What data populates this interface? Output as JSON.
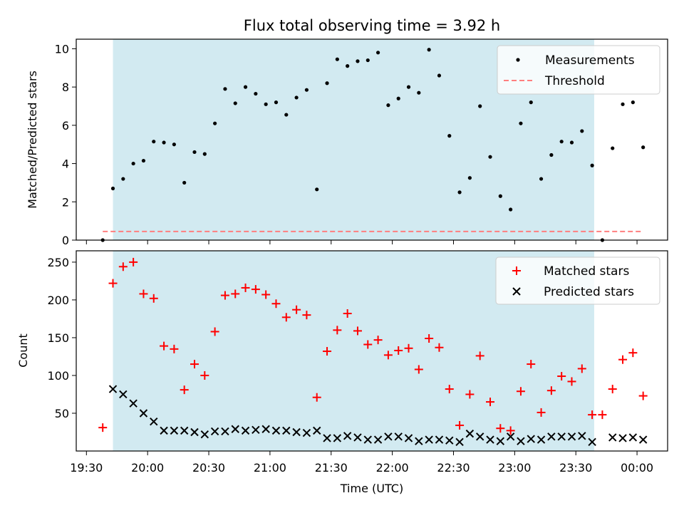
{
  "figure": {
    "title": "Flux total observing time = 3.92 h",
    "xlabel": "Time (UTC)"
  },
  "colors": {
    "shade": "#add8e6",
    "measurement": "#000000",
    "threshold": "#ff7f7f",
    "matched": "#ff0000",
    "predicted": "#000000"
  },
  "chart_data": [
    {
      "type": "scatter",
      "ylabel": "Matched/Predicted stars",
      "xlim": [
        "19:25",
        "00:15"
      ],
      "ylim": [
        0,
        10.5
      ],
      "yticks": [
        0,
        2,
        4,
        6,
        8,
        10
      ],
      "shaded_span": [
        "19:43",
        "23:39"
      ],
      "legend_position": "upper right",
      "series": [
        {
          "name": "Measurements",
          "x": [
            "19:38",
            "19:43",
            "19:48",
            "19:53",
            "19:58",
            "20:03",
            "20:08",
            "20:13",
            "20:18",
            "20:23",
            "20:28",
            "20:33",
            "20:38",
            "20:43",
            "20:48",
            "20:53",
            "20:58",
            "21:03",
            "21:08",
            "21:13",
            "21:18",
            "21:23",
            "21:28",
            "21:33",
            "21:38",
            "21:43",
            "21:48",
            "21:53",
            "21:58",
            "22:03",
            "22:08",
            "22:13",
            "22:18",
            "22:23",
            "22:28",
            "22:33",
            "22:38",
            "22:43",
            "22:48",
            "22:53",
            "22:58",
            "23:03",
            "23:08",
            "23:13",
            "23:18",
            "23:23",
            "23:28",
            "23:33",
            "23:38",
            "23:43",
            "23:48",
            "23:53",
            "23:58",
            "00:03"
          ],
          "y": [
            0,
            2.7,
            3.2,
            4.0,
            4.15,
            5.15,
            5.1,
            5.0,
            3.0,
            4.6,
            4.5,
            6.1,
            7.9,
            7.15,
            8.0,
            7.65,
            7.1,
            7.2,
            6.55,
            7.45,
            7.85,
            2.65,
            8.2,
            9.45,
            9.1,
            9.35,
            9.4,
            9.8,
            7.05,
            7.4,
            8.0,
            7.7,
            9.95,
            8.6,
            5.45,
            2.5,
            3.25,
            7.0,
            4.35,
            2.3,
            1.6,
            6.1,
            7.2,
            3.2,
            4.45,
            5.15,
            5.1,
            5.7,
            3.9,
            0,
            4.8,
            7.1,
            7.2,
            4.85
          ]
        },
        {
          "name": "Threshold",
          "x": [
            "19:38",
            "00:03"
          ],
          "y": [
            0.45,
            0.45
          ]
        }
      ]
    },
    {
      "type": "scatter",
      "ylabel": "Count",
      "xlim": [
        "19:25",
        "00:15"
      ],
      "ylim": [
        0,
        265
      ],
      "yticks": [
        50,
        100,
        150,
        200,
        250
      ],
      "xticks": [
        "19:30",
        "20:00",
        "20:30",
        "21:00",
        "21:30",
        "22:00",
        "22:30",
        "23:00",
        "23:30",
        "00:00"
      ],
      "shaded_span": [
        "19:43",
        "23:39"
      ],
      "legend_position": "upper right",
      "series": [
        {
          "name": "Matched stars",
          "x": [
            "19:38",
            "19:43",
            "19:48",
            "19:53",
            "19:58",
            "20:03",
            "20:08",
            "20:13",
            "20:18",
            "20:23",
            "20:28",
            "20:33",
            "20:38",
            "20:43",
            "20:48",
            "20:53",
            "20:58",
            "21:03",
            "21:08",
            "21:13",
            "21:18",
            "21:23",
            "21:28",
            "21:33",
            "21:38",
            "21:43",
            "21:48",
            "21:53",
            "21:58",
            "22:03",
            "22:08",
            "22:13",
            "22:18",
            "22:23",
            "22:28",
            "22:33",
            "22:38",
            "22:43",
            "22:48",
            "22:53",
            "22:58",
            "23:03",
            "23:08",
            "23:13",
            "23:18",
            "23:23",
            "23:28",
            "23:33",
            "23:38",
            "23:43",
            "23:48",
            "23:53",
            "23:58",
            "00:03"
          ],
          "y": [
            31,
            222,
            244,
            250,
            208,
            202,
            139,
            135,
            81,
            115,
            100,
            158,
            206,
            208,
            216,
            214,
            207,
            195,
            177,
            187,
            180,
            71,
            132,
            160,
            182,
            159,
            141,
            147,
            127,
            133,
            136,
            108,
            149,
            137,
            82,
            34,
            75,
            126,
            65,
            30,
            27,
            79,
            115,
            51,
            80,
            99,
            92,
            109,
            48,
            48,
            82,
            121,
            130,
            73
          ]
        },
        {
          "name": "Predicted stars",
          "x": [
            "19:43",
            "19:48",
            "19:53",
            "19:58",
            "20:03",
            "20:08",
            "20:13",
            "20:18",
            "20:23",
            "20:28",
            "20:33",
            "20:38",
            "20:43",
            "20:48",
            "20:53",
            "20:58",
            "21:03",
            "21:08",
            "21:13",
            "21:18",
            "21:23",
            "21:28",
            "21:33",
            "21:38",
            "21:43",
            "21:48",
            "21:53",
            "21:58",
            "22:03",
            "22:08",
            "22:13",
            "22:18",
            "22:23",
            "22:28",
            "22:33",
            "22:38",
            "22:43",
            "22:48",
            "22:53",
            "22:58",
            "23:03",
            "23:08",
            "23:13",
            "23:18",
            "23:23",
            "23:28",
            "23:33",
            "23:38",
            "23:48",
            "23:53",
            "23:58",
            "00:03"
          ],
          "y": [
            82,
            75,
            63,
            50,
            39,
            27,
            27,
            27,
            25,
            22,
            26,
            26,
            29,
            27,
            28,
            29,
            27,
            27,
            25,
            24,
            27,
            17,
            17,
            20,
            18,
            15,
            15,
            19,
            19,
            17,
            13,
            15,
            15,
            14,
            12,
            23,
            19,
            15,
            13,
            19,
            13,
            16,
            15,
            19,
            19,
            19,
            20,
            12,
            18,
            17,
            18,
            15
          ]
        }
      ]
    }
  ]
}
